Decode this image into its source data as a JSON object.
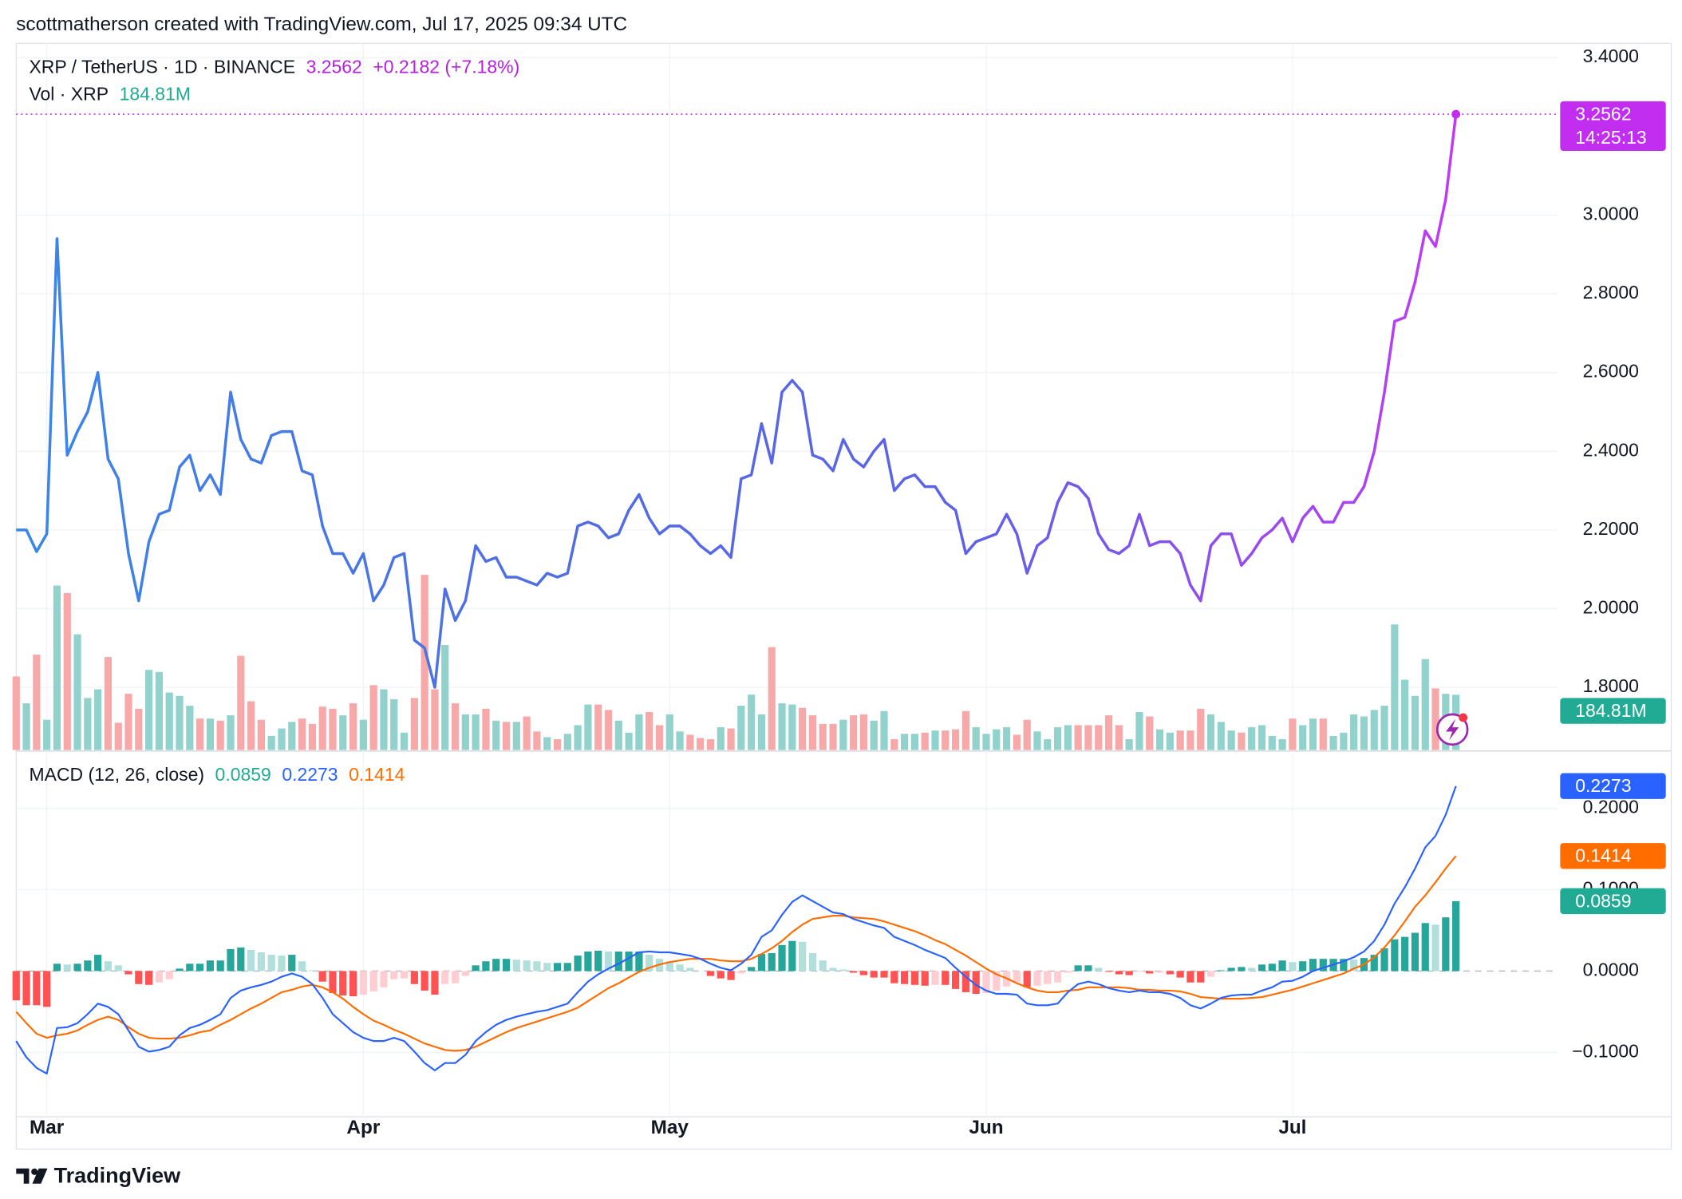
{
  "header": "scottmatherson created with TradingView.com, Jul 17, 2025 09:34 UTC",
  "footer": "TradingView",
  "chart_data": {
    "type": "line",
    "symbol": "XRP / TetherUS · 1D · BINANCE",
    "change": "+0.2182 (+7.18%)",
    "countdown": "14:25:13",
    "xlim": [
      0,
      151
    ],
    "xticks": [
      {
        "value": 3,
        "label": "Mar"
      },
      {
        "value": 34,
        "label": "Apr"
      },
      {
        "value": 64,
        "label": "May"
      },
      {
        "value": 95,
        "label": "Jun"
      },
      {
        "value": 125,
        "label": "Jul"
      }
    ],
    "ylim": [
      1.641,
      3.436
    ],
    "yticks": [
      {
        "value": 1.8,
        "label": "1.8000"
      },
      {
        "value": 2.0,
        "label": "2.0000"
      },
      {
        "value": 2.2,
        "label": "2.2000"
      },
      {
        "value": 2.4,
        "label": "2.4000"
      },
      {
        "value": 2.6,
        "label": "2.6000"
      },
      {
        "value": 2.8,
        "label": "2.8000"
      },
      {
        "value": 3.0,
        "label": "3.0000"
      },
      {
        "value": 3.4,
        "label": "3.4000"
      }
    ],
    "grid": true,
    "price": {
      "colors": [
        "#3a86e8",
        "#4f6fe3",
        "#5e62e6",
        "#c03af5"
      ],
      "badge_color": "#c12ef0",
      "values": [
        2.2,
        2.2,
        2.145,
        2.19,
        2.94,
        2.39,
        2.45,
        2.5,
        2.6,
        2.38,
        2.33,
        2.14,
        2.02,
        2.17,
        2.24,
        2.25,
        2.36,
        2.39,
        2.3,
        2.34,
        2.29,
        2.55,
        2.43,
        2.38,
        2.37,
        2.44,
        2.45,
        2.45,
        2.35,
        2.34,
        2.21,
        2.14,
        2.14,
        2.09,
        2.14,
        2.02,
        2.06,
        2.13,
        2.14,
        1.92,
        1.9,
        1.8,
        2.05,
        1.97,
        2.02,
        2.16,
        2.12,
        2.13,
        2.08,
        2.08,
        2.07,
        2.06,
        2.09,
        2.08,
        2.09,
        2.21,
        2.22,
        2.21,
        2.18,
        2.19,
        2.25,
        2.29,
        2.23,
        2.19,
        2.21,
        2.21,
        2.19,
        2.16,
        2.14,
        2.16,
        2.13,
        2.33,
        2.34,
        2.47,
        2.37,
        2.55,
        2.58,
        2.55,
        2.39,
        2.38,
        2.35,
        2.43,
        2.38,
        2.36,
        2.4,
        2.43,
        2.3,
        2.33,
        2.34,
        2.31,
        2.31,
        2.27,
        2.25,
        2.14,
        2.17,
        2.18,
        2.19,
        2.24,
        2.19,
        2.09,
        2.16,
        2.18,
        2.27,
        2.32,
        2.31,
        2.28,
        2.19,
        2.15,
        2.14,
        2.16,
        2.24,
        2.16,
        2.17,
        2.17,
        2.14,
        2.06,
        2.02,
        2.16,
        2.19,
        2.19,
        2.11,
        2.14,
        2.18,
        2.2,
        2.23,
        2.17,
        2.23,
        2.26,
        2.22,
        2.22,
        2.27,
        2.27,
        2.31,
        2.4,
        2.55,
        2.73,
        2.74,
        2.83,
        2.96,
        2.92,
        3.04,
        3.2562
      ]
    },
    "volume": {
      "name": "Vol · XRP",
      "color_up": "#92d2cc",
      "color_down": "#f7a9a9",
      "badge_color": "#22ab94",
      "ylim": [
        0,
        2364
      ],
      "last_label": "184.81M",
      "values": [
        246,
        156,
        319,
        101,
        550,
        525,
        387,
        174,
        203,
        311,
        91,
        188,
        138,
        268,
        261,
        192,
        181,
        148,
        105,
        105,
        98,
        116,
        315,
        163,
        101,
        47,
        72,
        94,
        105,
        87,
        145,
        138,
        116,
        156,
        101,
        217,
        203,
        170,
        58,
        174,
        586,
        203,
        351,
        156,
        119,
        119,
        138,
        98,
        94,
        94,
        112,
        62,
        43,
        36,
        54,
        83,
        152,
        152,
        134,
        98,
        58,
        119,
        127,
        83,
        119,
        62,
        51,
        40,
        36,
        76,
        72,
        148,
        185,
        119,
        344,
        156,
        152,
        141,
        116,
        87,
        87,
        101,
        116,
        119,
        98,
        130,
        36,
        54,
        54,
        58,
        65,
        65,
        69,
        130,
        76,
        54,
        69,
        76,
        51,
        101,
        62,
        36,
        76,
        83,
        83,
        83,
        83,
        116,
        83,
        36,
        127,
        112,
        69,
        58,
        65,
        65,
        138,
        119,
        94,
        65,
        58,
        76,
        83,
        47,
        36,
        105,
        83,
        105,
        105,
        47,
        58,
        119,
        112,
        134,
        148,
        420,
        235,
        181,
        304,
        206,
        188,
        184.81
      ]
    },
    "macd": {
      "name": "MACD (12, 26, close)",
      "ylim": [
        -0.179,
        0.269
      ],
      "yticks": [
        {
          "value": -0.1,
          "label": "−0.1000"
        },
        {
          "value": 0,
          "label": "0.0000"
        },
        {
          "value": 0.1,
          "label": "0.1000"
        },
        {
          "value": 0.2,
          "label": "0.2000"
        }
      ],
      "histogram": {
        "colors": [
          "#26a69a",
          "#b2dfdb",
          "#ffcdd2",
          "#ff5252"
        ],
        "badge_color": "#22ab94",
        "values": [
          -0.036,
          -0.042,
          -0.042,
          -0.044,
          0.009,
          0.008,
          0.009,
          0.013,
          0.02,
          0.012,
          0.007,
          -0.004,
          -0.016,
          -0.017,
          -0.014,
          -0.01,
          0.003,
          0.009,
          0.009,
          0.013,
          0.013,
          0.027,
          0.029,
          0.026,
          0.023,
          0.02,
          0.019,
          0.02,
          0.012,
          0.001,
          -0.013,
          -0.027,
          -0.03,
          -0.031,
          -0.029,
          -0.025,
          -0.02,
          -0.01,
          -0.009,
          -0.016,
          -0.024,
          -0.029,
          -0.016,
          -0.015,
          -0.006,
          0.007,
          0.012,
          0.015,
          0.015,
          0.014,
          0.013,
          0.012,
          0.01,
          0.01,
          0.01,
          0.019,
          0.024,
          0.025,
          0.024,
          0.024,
          0.024,
          0.024,
          0.02,
          0.015,
          0.012,
          0.008,
          0.004,
          0,
          -0.006,
          -0.009,
          -0.011,
          -0.003,
          0.005,
          0.021,
          0.022,
          0.032,
          0.037,
          0.036,
          0.022,
          0.013,
          0.004,
          0.002,
          -0.002,
          -0.005,
          -0.008,
          -0.008,
          -0.015,
          -0.016,
          -0.017,
          -0.018,
          -0.017,
          -0.017,
          -0.022,
          -0.026,
          -0.028,
          -0.027,
          -0.024,
          -0.019,
          -0.014,
          -0.02,
          -0.018,
          -0.016,
          -0.014,
          -0.002,
          0.007,
          0.007,
          0.004,
          -0.001,
          -0.004,
          -0.005,
          -0.001,
          -0.003,
          -0.002,
          -0.004,
          -0.008,
          -0.014,
          -0.014,
          -0.007,
          0.001,
          0.004,
          0.005,
          0.004,
          0.008,
          0.009,
          0.013,
          0.011,
          0.012,
          0.015,
          0.015,
          0.015,
          0.015,
          0.014,
          0.016,
          0.02,
          0.028,
          0.039,
          0.042,
          0.047,
          0.059,
          0.057,
          0.066,
          0.0859
        ]
      },
      "macd": {
        "color": "#2962ff",
        "values": [
          -0.086,
          -0.106,
          -0.119,
          -0.126,
          -0.07,
          -0.069,
          -0.064,
          -0.053,
          -0.04,
          -0.044,
          -0.053,
          -0.073,
          -0.093,
          -0.099,
          -0.097,
          -0.093,
          -0.079,
          -0.07,
          -0.066,
          -0.06,
          -0.053,
          -0.033,
          -0.024,
          -0.02,
          -0.017,
          -0.013,
          -0.007,
          -0.003,
          -0.007,
          -0.016,
          -0.033,
          -0.053,
          -0.064,
          -0.075,
          -0.082,
          -0.086,
          -0.086,
          -0.082,
          -0.086,
          -0.099,
          -0.113,
          -0.122,
          -0.113,
          -0.113,
          -0.103,
          -0.086,
          -0.075,
          -0.066,
          -0.06,
          -0.056,
          -0.053,
          -0.05,
          -0.048,
          -0.044,
          -0.04,
          -0.026,
          -0.013,
          -0.004,
          0.003,
          0.009,
          0.016,
          0.023,
          0.024,
          0.023,
          0.023,
          0.021,
          0.019,
          0.015,
          0.009,
          0.004,
          0.001,
          0.009,
          0.02,
          0.042,
          0.05,
          0.069,
          0.085,
          0.093,
          0.086,
          0.079,
          0.072,
          0.07,
          0.064,
          0.06,
          0.056,
          0.053,
          0.042,
          0.037,
          0.032,
          0.026,
          0.021,
          0.016,
          0.004,
          -0.007,
          -0.017,
          -0.024,
          -0.028,
          -0.028,
          -0.029,
          -0.04,
          -0.042,
          -0.042,
          -0.04,
          -0.026,
          -0.016,
          -0.013,
          -0.016,
          -0.021,
          -0.024,
          -0.026,
          -0.024,
          -0.026,
          -0.026,
          -0.028,
          -0.033,
          -0.042,
          -0.046,
          -0.04,
          -0.033,
          -0.03,
          -0.029,
          -0.029,
          -0.024,
          -0.02,
          -0.013,
          -0.012,
          -0.007,
          0,
          0.004,
          0.008,
          0.012,
          0.017,
          0.024,
          0.037,
          0.057,
          0.083,
          0.103,
          0.126,
          0.152,
          0.166,
          0.192,
          0.2273
        ]
      },
      "signal": {
        "color": "#ff6d00",
        "values": [
          -0.05,
          -0.064,
          -0.077,
          -0.082,
          -0.079,
          -0.077,
          -0.073,
          -0.066,
          -0.06,
          -0.056,
          -0.06,
          -0.069,
          -0.077,
          -0.082,
          -0.083,
          -0.083,
          -0.082,
          -0.079,
          -0.075,
          -0.073,
          -0.066,
          -0.06,
          -0.053,
          -0.046,
          -0.04,
          -0.033,
          -0.026,
          -0.023,
          -0.019,
          -0.017,
          -0.02,
          -0.026,
          -0.034,
          -0.044,
          -0.053,
          -0.061,
          -0.066,
          -0.072,
          -0.077,
          -0.083,
          -0.089,
          -0.093,
          -0.097,
          -0.098,
          -0.097,
          -0.093,
          -0.087,
          -0.081,
          -0.075,
          -0.07,
          -0.066,
          -0.062,
          -0.058,
          -0.054,
          -0.05,
          -0.045,
          -0.037,
          -0.029,
          -0.021,
          -0.015,
          -0.008,
          -0.001,
          0.004,
          0.008,
          0.011,
          0.013,
          0.015,
          0.015,
          0.015,
          0.013,
          0.012,
          0.012,
          0.015,
          0.021,
          0.028,
          0.037,
          0.048,
          0.057,
          0.064,
          0.066,
          0.068,
          0.068,
          0.066,
          0.065,
          0.064,
          0.061,
          0.057,
          0.053,
          0.049,
          0.044,
          0.038,
          0.033,
          0.026,
          0.019,
          0.011,
          0.003,
          -0.004,
          -0.009,
          -0.015,
          -0.02,
          -0.024,
          -0.026,
          -0.026,
          -0.024,
          -0.023,
          -0.02,
          -0.02,
          -0.02,
          -0.02,
          -0.021,
          -0.023,
          -0.023,
          -0.024,
          -0.024,
          -0.025,
          -0.028,
          -0.032,
          -0.033,
          -0.034,
          -0.034,
          -0.034,
          -0.033,
          -0.032,
          -0.029,
          -0.026,
          -0.023,
          -0.019,
          -0.015,
          -0.011,
          -0.007,
          -0.003,
          0.003,
          0.008,
          0.017,
          0.029,
          0.044,
          0.061,
          0.079,
          0.093,
          0.109,
          0.126,
          0.1414
        ]
      }
    }
  }
}
